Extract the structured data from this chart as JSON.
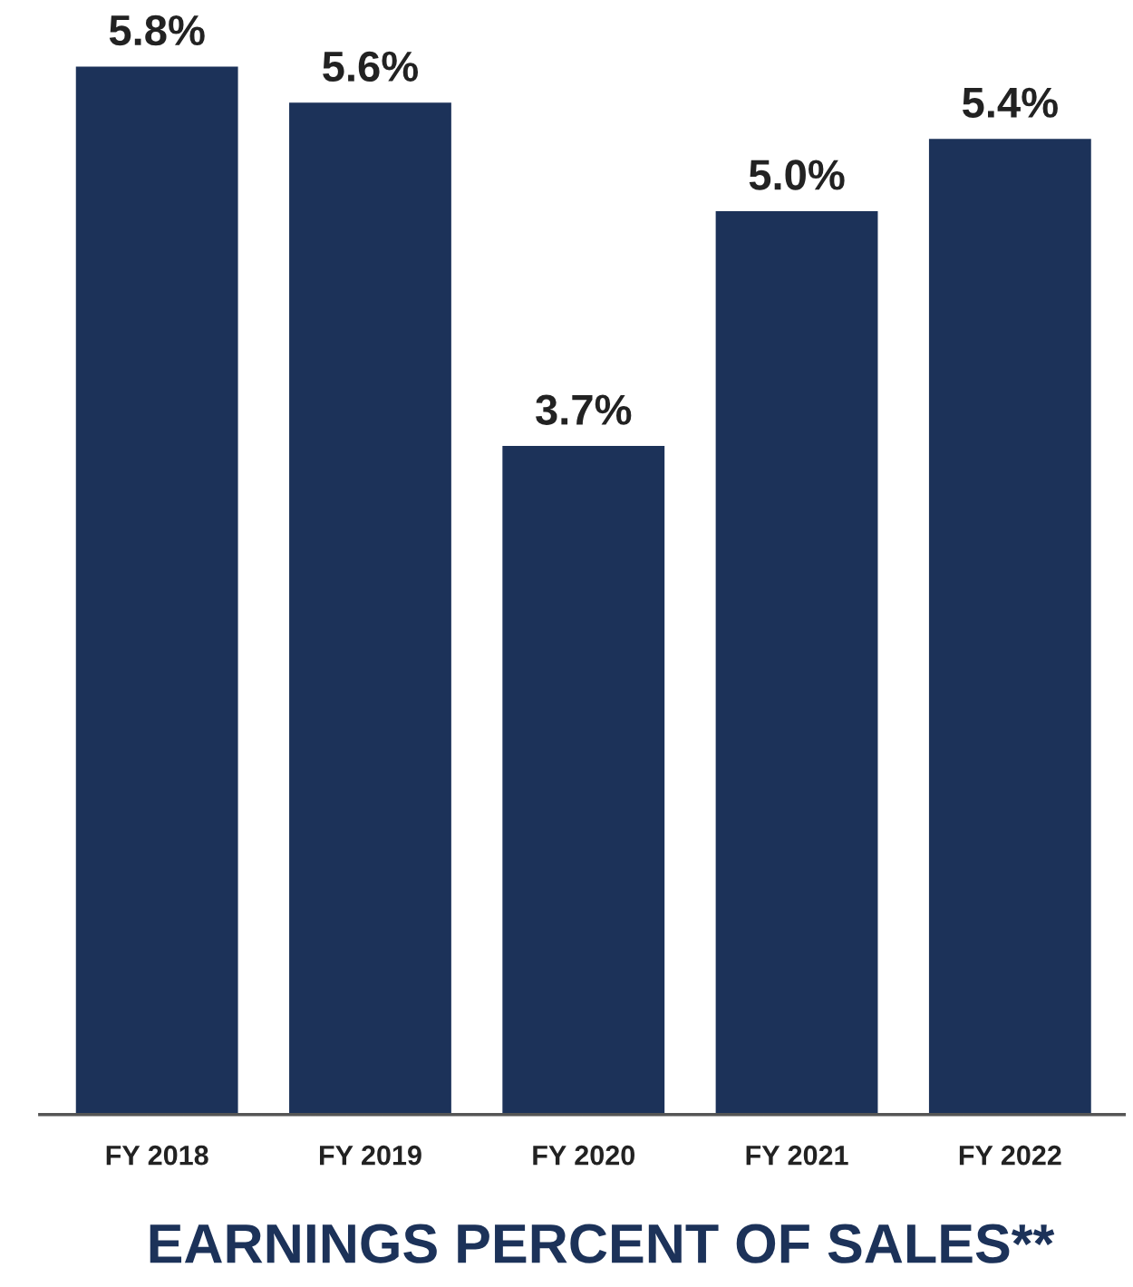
{
  "chart_data": {
    "type": "bar",
    "title": "EARNINGS PERCENT OF SALES**",
    "categories": [
      "FY 2018",
      "FY 2019",
      "FY 2020",
      "FY 2021",
      "FY 2022"
    ],
    "values": [
      5.8,
      5.6,
      3.7,
      5.0,
      5.4
    ],
    "value_labels": [
      "5.8%",
      "5.6%",
      "3.7%",
      "5.0%",
      "5.4%"
    ],
    "color": "#1c3259",
    "grid": false
  }
}
